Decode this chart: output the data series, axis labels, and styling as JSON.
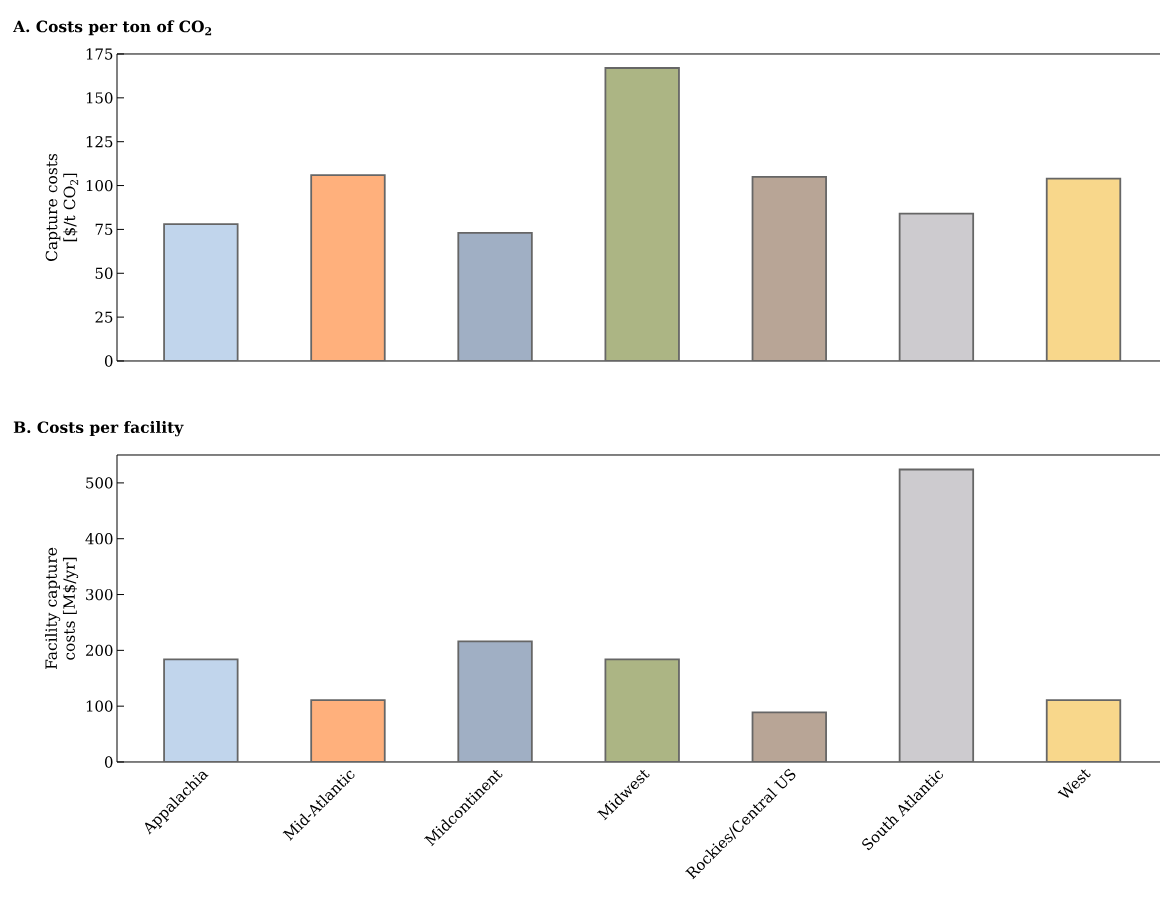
{
  "chart_data": [
    {
      "type": "bar",
      "title": "A. Costs per ton of CO$_{2}$",
      "ylabel": "Capture costs [$/t CO$_{2}$]",
      "categories": [
        null,
        null,
        null,
        null,
        null,
        null,
        null
      ],
      "values": [
        78,
        106,
        73,
        167,
        105,
        84,
        104
      ],
      "colors": [
        "#c1d5ec",
        "#ffb07c",
        "#a0afc4",
        "#acb584",
        "#b8a596",
        "#cdcbcf",
        "#f8d78b"
      ],
      "ylim": [
        0,
        175
      ],
      "yticks": [
        0,
        25,
        50,
        75,
        100,
        125,
        150,
        175
      ],
      "tick_labels": "y"
    },
    {
      "type": "bar",
      "title": "B. Costs per facility",
      "ylabel": "Facility capture costs [M$/yr]",
      "categories": [
        "Appalachia",
        "Mid-Atlantic",
        "Midcontinent",
        "Midwest",
        "Rockies/Central US",
        "South Atlantic",
        "West"
      ],
      "values": [
        184,
        111,
        216,
        184,
        89,
        524,
        111
      ],
      "colors": [
        "#c1d5ec",
        "#ffb07c",
        "#a0afc4",
        "#acb584",
        "#b8a596",
        "#cdcbcf",
        "#f8d78b"
      ],
      "ylim": [
        0,
        550
      ],
      "yticks": [
        0,
        100,
        200,
        300,
        400,
        500
      ]
    }
  ]
}
